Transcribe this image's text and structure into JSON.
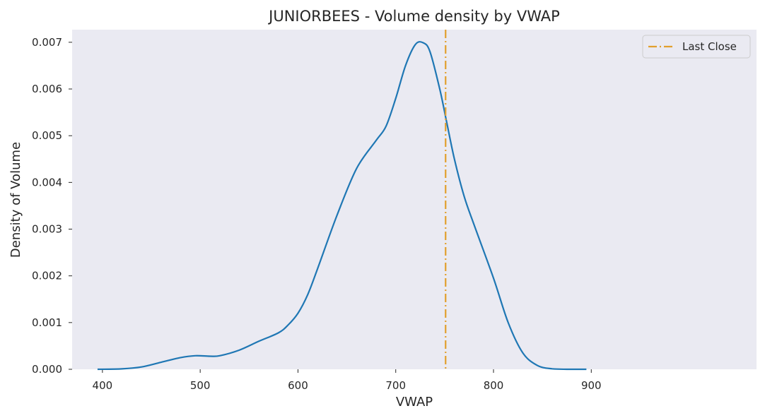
{
  "chart_data": {
    "type": "line",
    "title": "JUNIORBEES - Volume density by VWAP",
    "xlabel": "VWAP",
    "ylabel": "Density of Volume",
    "xlim": [
      369,
      1069
    ],
    "ylim": [
      0,
      0.00727
    ],
    "x_ticks": [
      400,
      500,
      600,
      700,
      800,
      900
    ],
    "x_tick_labels": [
      "400",
      "500",
      "600",
      "700",
      "800",
      "900"
    ],
    "y_ticks": [
      0,
      0.001,
      0.002,
      0.003,
      0.004,
      0.005,
      0.006,
      0.007
    ],
    "y_tick_labels": [
      "0.000",
      "0.001",
      "0.002",
      "0.003",
      "0.004",
      "0.005",
      "0.006",
      "0.007"
    ],
    "grid": false,
    "legend": {
      "position": "top-right",
      "entries": [
        "Last Close"
      ]
    },
    "colors": {
      "plot_background": "#eaeaf2",
      "density_line": "#1f77b4",
      "last_close_line": "#e1a02e",
      "text": "#262626"
    },
    "series": [
      {
        "x": [
          395,
          420,
          440,
          460,
          480,
          495,
          510,
          520,
          540,
          560,
          580,
          590,
          600,
          610,
          620,
          640,
          660,
          680,
          690,
          700,
          710,
          720,
          728,
          735,
          745,
          752,
          760,
          770,
          780,
          800,
          815,
          830,
          845,
          860,
          875,
          895
        ],
        "y": [
          0.0,
          1e-05,
          5e-05,
          0.00015,
          0.00025,
          0.00029,
          0.00028,
          0.00029,
          0.00041,
          0.0006,
          0.00078,
          0.00095,
          0.0012,
          0.0016,
          0.00215,
          0.0033,
          0.0043,
          0.0049,
          0.0052,
          0.0058,
          0.0065,
          0.00695,
          0.00699,
          0.0068,
          0.006,
          0.0053,
          0.0045,
          0.0037,
          0.0031,
          0.00195,
          0.001,
          0.00035,
          8e-05,
          1e-05,
          0.0,
          0.0
        ]
      }
    ],
    "vertical_lines": [
      {
        "name": "Last Close",
        "x": 751
      }
    ]
  }
}
